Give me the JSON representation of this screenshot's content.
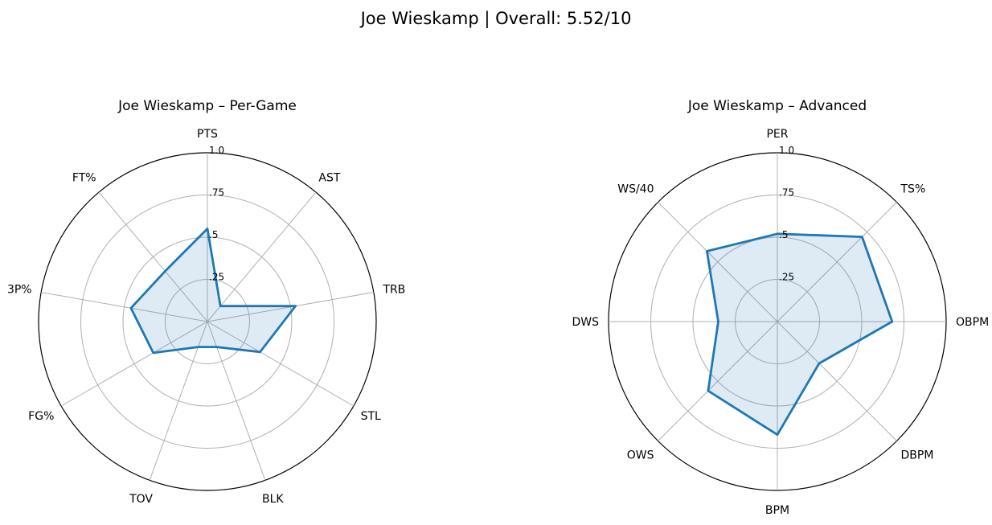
{
  "figure_title": "Joe Wieskamp | Overall: 5.52/10",
  "colors": {
    "series": "#1f77b4",
    "grid": "#b0b0b0",
    "outer": "#000000"
  },
  "chart_data": [
    {
      "type": "radar",
      "title": "Joe Wieskamp – Per-Game",
      "axes": [
        "PTS",
        "AST",
        "TRB",
        "STL",
        "BLK",
        "TOV",
        "FG%",
        "3P%",
        "FT%"
      ],
      "values": [
        0.55,
        0.12,
        0.53,
        0.36,
        0.16,
        0.16,
        0.37,
        0.46,
        0.39
      ],
      "r_ticks": [
        0.25,
        0.5,
        0.75,
        1.0
      ],
      "r_tick_labels": [
        ".25",
        ".5",
        ".75",
        "1.0"
      ],
      "rlim": [
        0,
        1
      ],
      "grid": true
    },
    {
      "type": "radar",
      "title": "Joe Wieskamp – Advanced",
      "axes": [
        "PER",
        "TS%",
        "OBPM",
        "DBPM",
        "BPM",
        "OWS",
        "DWS",
        "WS/40"
      ],
      "values": [
        0.52,
        0.71,
        0.68,
        0.35,
        0.67,
        0.58,
        0.35,
        0.59
      ],
      "r_ticks": [
        0.25,
        0.5,
        0.75,
        1.0
      ],
      "r_tick_labels": [
        ".25",
        ".5",
        ".75",
        "1.0"
      ],
      "rlim": [
        0,
        1
      ],
      "grid": true
    }
  ]
}
